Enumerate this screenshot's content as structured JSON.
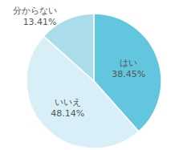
{
  "chart_data": {
    "type": "pie",
    "categories": [
      "はい",
      "いいえ",
      "分からない"
    ],
    "values": [
      38.45,
      48.14,
      13.41
    ],
    "value_labels": [
      "38.45%",
      "48.14%",
      "13.41%"
    ],
    "colors": [
      "#62c6de",
      "#d8eff7",
      "#abdcea"
    ],
    "data_labels": true
  }
}
